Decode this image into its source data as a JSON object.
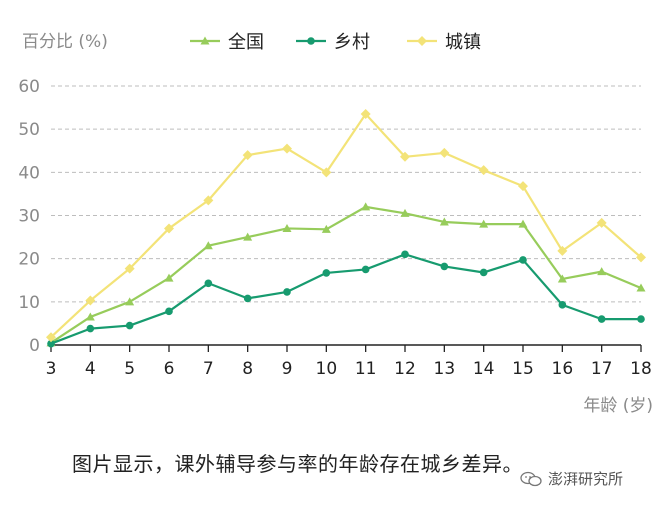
{
  "chart_data": {
    "type": "line",
    "ylabel": "百分比 (%)",
    "xlabel": "年龄 (岁)",
    "x": [
      3,
      4,
      5,
      6,
      7,
      8,
      9,
      10,
      11,
      12,
      13,
      14,
      15,
      16,
      17,
      18
    ],
    "ylim": [
      0,
      60
    ],
    "yticks": [
      0,
      10,
      20,
      30,
      40,
      50,
      60
    ],
    "grid": "horizontal dashed",
    "legend_position": "top",
    "series": [
      {
        "name": "全国",
        "marker": "triangle",
        "color": "#97cc5b",
        "values": [
          0.5,
          6.5,
          10,
          15.5,
          23,
          25,
          27,
          26.8,
          32,
          30.5,
          28.5,
          28,
          28,
          15.3,
          17,
          13.2
        ]
      },
      {
        "name": "乡村",
        "marker": "circle",
        "color": "#179b6f",
        "values": [
          0.3,
          3.8,
          4.5,
          7.8,
          14.3,
          10.8,
          12.3,
          16.7,
          17.5,
          21,
          18.2,
          16.8,
          19.7,
          9.3,
          6,
          6
        ]
      },
      {
        "name": "城镇",
        "marker": "diamond",
        "color": "#f3e378",
        "values": [
          1.8,
          10.3,
          17.7,
          27,
          33.5,
          44,
          45.5,
          40,
          53.5,
          43.6,
          44.5,
          40.5,
          36.8,
          21.8,
          28.3,
          20.3
        ]
      }
    ]
  },
  "caption": "图片显示，课外辅导参与率的年龄存在城乡差异。",
  "watermark": {
    "text": "澎湃研究所",
    "icon": "wechat-icon"
  }
}
